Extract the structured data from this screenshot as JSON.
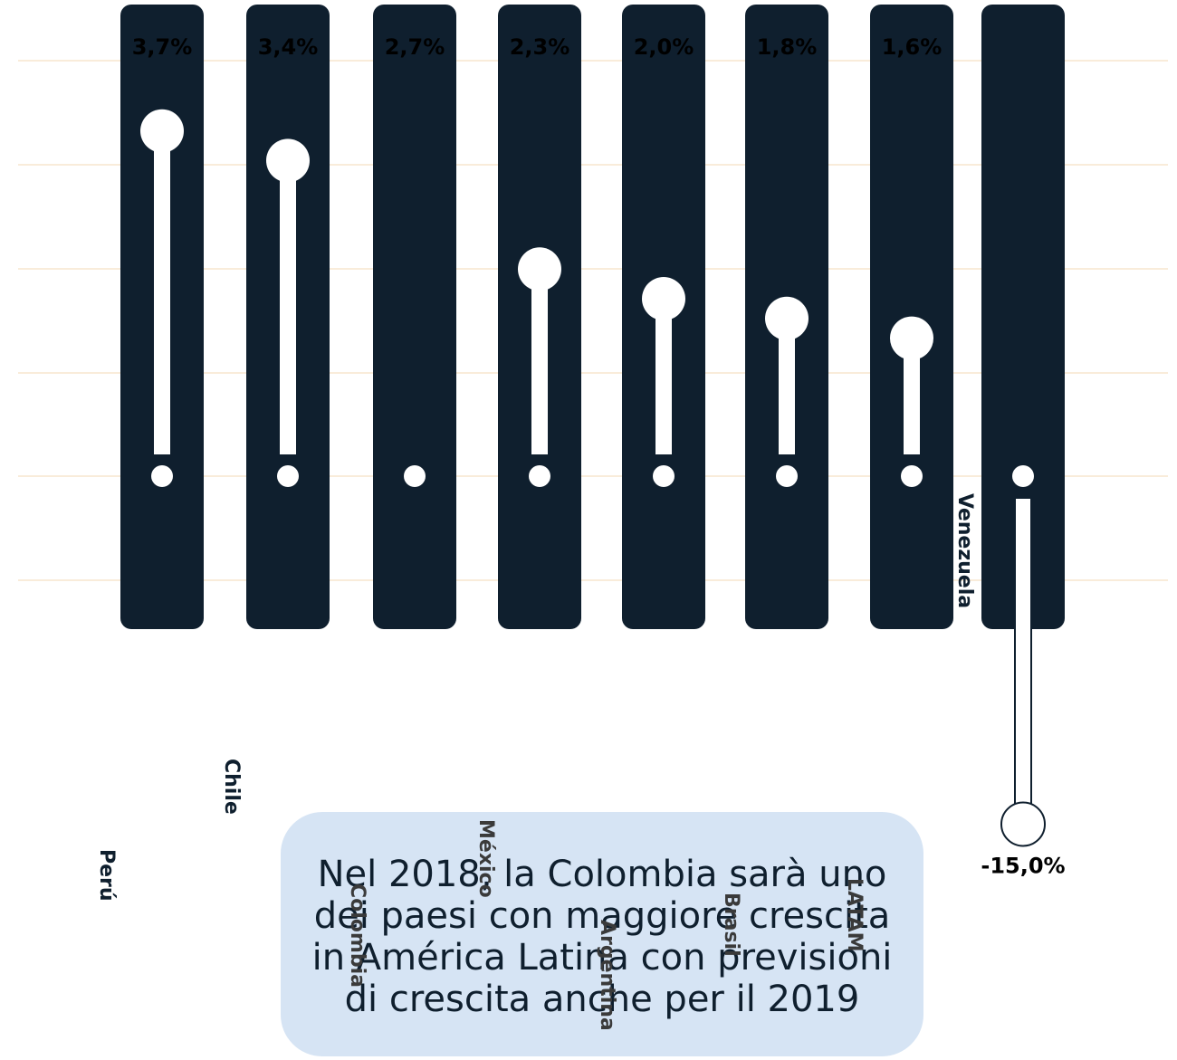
{
  "chart_data": {
    "type": "bar",
    "categories": [
      "Perú",
      "Chile",
      "Colombia",
      "México",
      "Argentina",
      "Brasil",
      "LATAM",
      "Venezuela"
    ],
    "values": [
      3.7,
      3.4,
      2.7,
      2.3,
      2.0,
      1.8,
      1.6,
      -15.0
    ],
    "value_labels": [
      "3,7%",
      "3,4%",
      "2,7%",
      "2,3%",
      "2,0%",
      "1,8%",
      "1,6%",
      "-15,0%"
    ],
    "title": "",
    "xlabel": "",
    "ylabel": "",
    "grid": true,
    "colors": {
      "column": "#0f1f2e",
      "marker": "#ffffff",
      "gridline": "#f3d9b5",
      "label_dark": "#0f1f2e",
      "label_gray": "#3a3a3a"
    }
  },
  "callout": {
    "text": "Nel 2018, la Colombia sarà uno dei paesi con maggiore crescita in América Latina con previsioni di crescita anche per il 2019",
    "background": "#d6e4f4"
  }
}
